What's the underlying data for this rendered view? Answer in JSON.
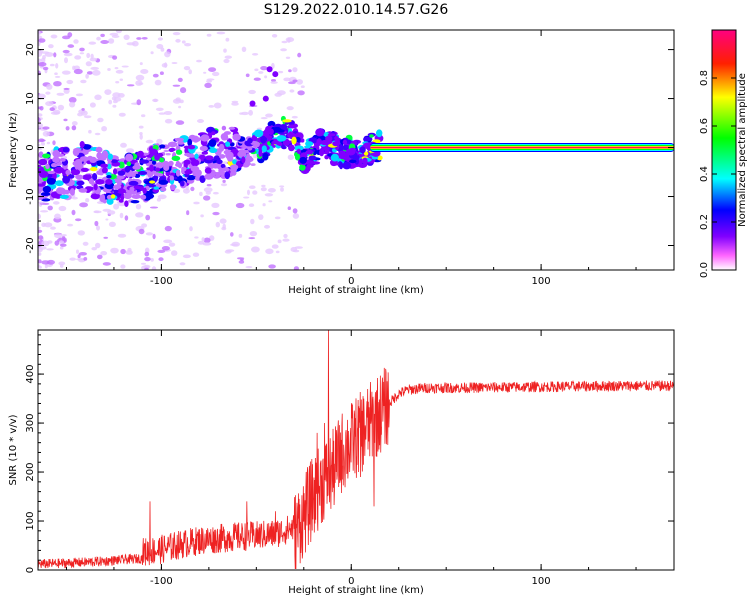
{
  "title": "S129.2022.010.14.57.G26",
  "chart_data": [
    {
      "type": "heatmap",
      "xlabel": "Height of straight line (km)",
      "ylabel": "Frequency (Hz)",
      "xlim": [
        -165,
        170
      ],
      "ylim": [
        -25,
        24
      ],
      "xticks": [
        -100,
        0,
        100
      ],
      "yticks": [
        -20,
        -10,
        0,
        10,
        20
      ],
      "colorbar": {
        "label": "Normalized spectral amplitude",
        "range": [
          0,
          1
        ],
        "ticks": [
          0.0,
          0.2,
          0.4,
          0.6,
          0.8
        ],
        "colors": [
          "#ffffff",
          "#ff00ff",
          "#8000ff",
          "#0000ff",
          "#00ffff",
          "#00ff00",
          "#ffff00",
          "#ff0000",
          "#ff0080"
        ]
      },
      "ridge": {
        "x": [
          -165,
          -150,
          -140,
          -130,
          -120,
          -110,
          -100,
          -90,
          -80,
          -70,
          -60,
          -50,
          -45,
          -40,
          -35,
          -30,
          -25,
          -20,
          -15,
          -10,
          -5,
          0,
          5,
          10,
          15,
          170
        ],
        "y": [
          -6,
          -5,
          -4,
          -6,
          -7,
          -6,
          -4,
          -3,
          -2,
          -1,
          -1,
          0,
          1,
          3,
          3,
          2,
          -2,
          -1,
          1,
          0,
          -1,
          -1,
          -1,
          0,
          0,
          0
        ]
      },
      "carrier": {
        "x_start": 10,
        "x_end": 170,
        "frequency": 0
      }
    },
    {
      "type": "line",
      "xlabel": "Height of straight line (km)",
      "ylabel": "SNR (10 * v/v)",
      "xlim": [
        -165,
        170
      ],
      "ylim": [
        0,
        490
      ],
      "xticks": [
        -100,
        0,
        100
      ],
      "yticks": [
        0,
        100,
        200,
        300,
        400
      ],
      "color": "#ee2222",
      "envelope": {
        "x": [
          -165,
          -150,
          -130,
          -110,
          -100,
          -90,
          -80,
          -70,
          -60,
          -50,
          -40,
          -30,
          -25,
          -20,
          -15,
          -10,
          -5,
          0,
          5,
          10,
          15,
          20,
          25,
          30,
          40,
          60,
          100,
          140,
          170
        ],
        "y": [
          12,
          14,
          18,
          24,
          30,
          40,
          48,
          52,
          56,
          58,
          62,
          75,
          110,
          150,
          180,
          200,
          240,
          260,
          280,
          300,
          320,
          340,
          360,
          368,
          372,
          372,
          374,
          376,
          376
        ]
      },
      "spikes": [
        {
          "x": -106,
          "y": 140
        },
        {
          "x": -55,
          "y": 140
        },
        {
          "x": -40,
          "y": 120
        },
        {
          "x": -18,
          "y": 280
        },
        {
          "x": -14,
          "y": 300
        },
        {
          "x": -12,
          "y": 490
        },
        {
          "x": -8,
          "y": 200
        },
        {
          "x": 5,
          "y": 190
        },
        {
          "x": 12,
          "y": 130
        }
      ]
    }
  ]
}
